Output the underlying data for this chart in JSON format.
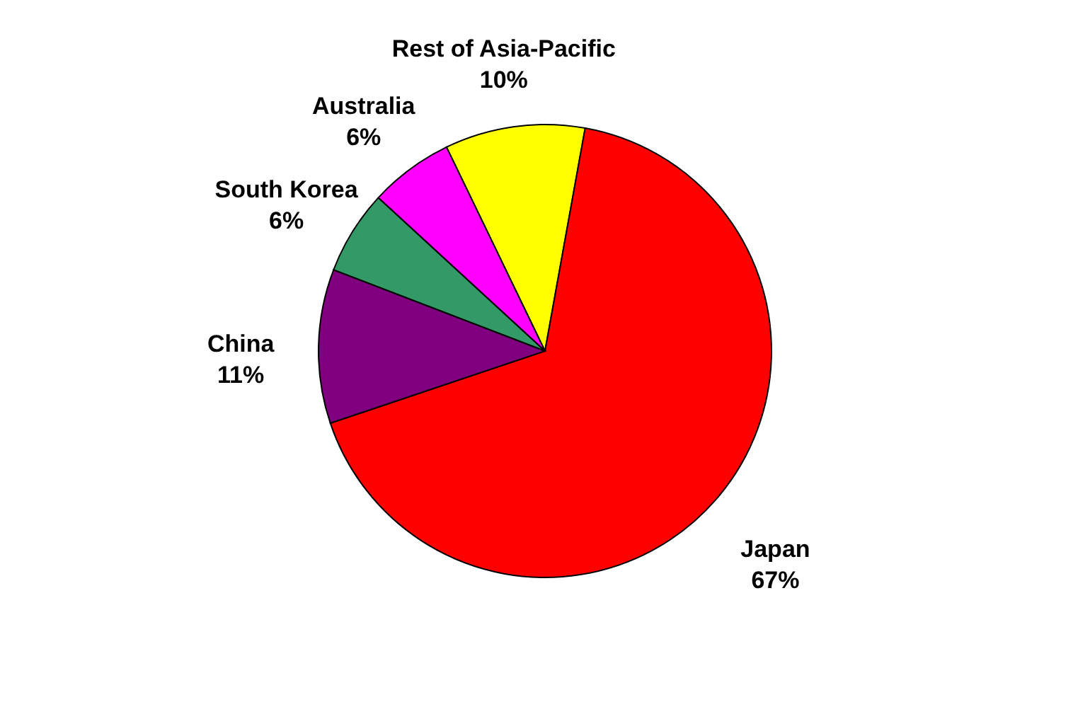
{
  "chart_data": {
    "type": "pie",
    "categories": [
      "Rest of Asia-Pacific",
      "Japan",
      "China",
      "South Korea",
      "Australia"
    ],
    "values": [
      10,
      67,
      11,
      6,
      6
    ],
    "value_labels": [
      "10%",
      "67%",
      "11%",
      "6%",
      "6%"
    ],
    "colors": [
      "#ffff00",
      "#ff0000",
      "#800080",
      "#339966",
      "#ff00ff"
    ],
    "legend": false
  }
}
